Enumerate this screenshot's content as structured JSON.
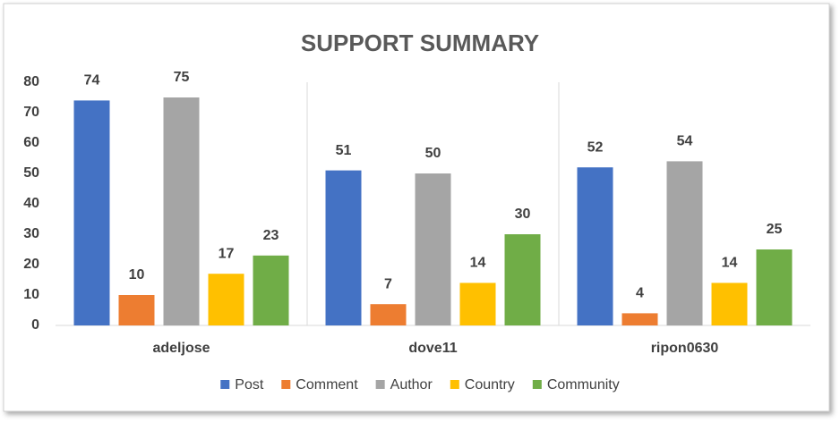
{
  "chart_data": {
    "type": "bar",
    "title": "SUPPORT SUMMARY",
    "categories": [
      "adeljose",
      "dove11",
      "ripon0630"
    ],
    "series": [
      {
        "name": "Post",
        "color": "#4472c4",
        "values": [
          74,
          51,
          52
        ]
      },
      {
        "name": "Comment",
        "color": "#ed7d31",
        "values": [
          10,
          7,
          4
        ]
      },
      {
        "name": "Author",
        "color": "#a5a5a5",
        "values": [
          75,
          50,
          54
        ]
      },
      {
        "name": "Country",
        "color": "#ffc000",
        "values": [
          17,
          14,
          14
        ]
      },
      {
        "name": "Community",
        "color": "#70ad47",
        "values": [
          23,
          30,
          25
        ]
      }
    ],
    "ylim": [
      0,
      80
    ],
    "yticks": [
      0,
      10,
      20,
      30,
      40,
      50,
      60,
      70,
      80
    ],
    "legend": "bottom"
  }
}
